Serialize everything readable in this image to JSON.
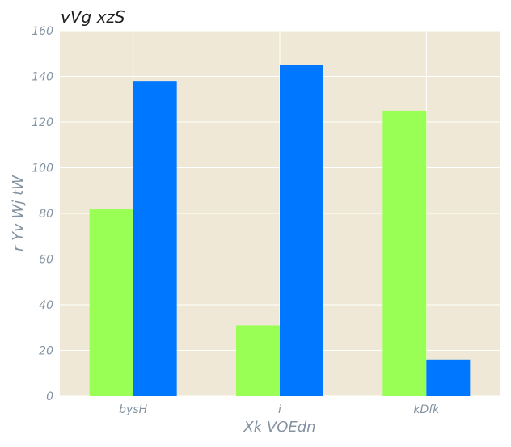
{
  "chart_data": {
    "type": "bar",
    "title": "vVg xzS",
    "xlabel": "Xk VOEdn",
    "ylabel": "r  Yv Wj tW",
    "categories": [
      "bysH",
      "i",
      "kDfk"
    ],
    "series": [
      {
        "values": [
          82,
          31,
          125
        ],
        "color": "#99ff55"
      },
      {
        "values": [
          138,
          145,
          16
        ],
        "color": "#0077ff"
      }
    ],
    "ylim": [
      0,
      160
    ],
    "yticks": [
      0,
      20,
      40,
      60,
      80,
      100,
      120,
      140,
      160
    ],
    "grid": true,
    "legend": "none",
    "plot_background": "#efe8d6"
  }
}
